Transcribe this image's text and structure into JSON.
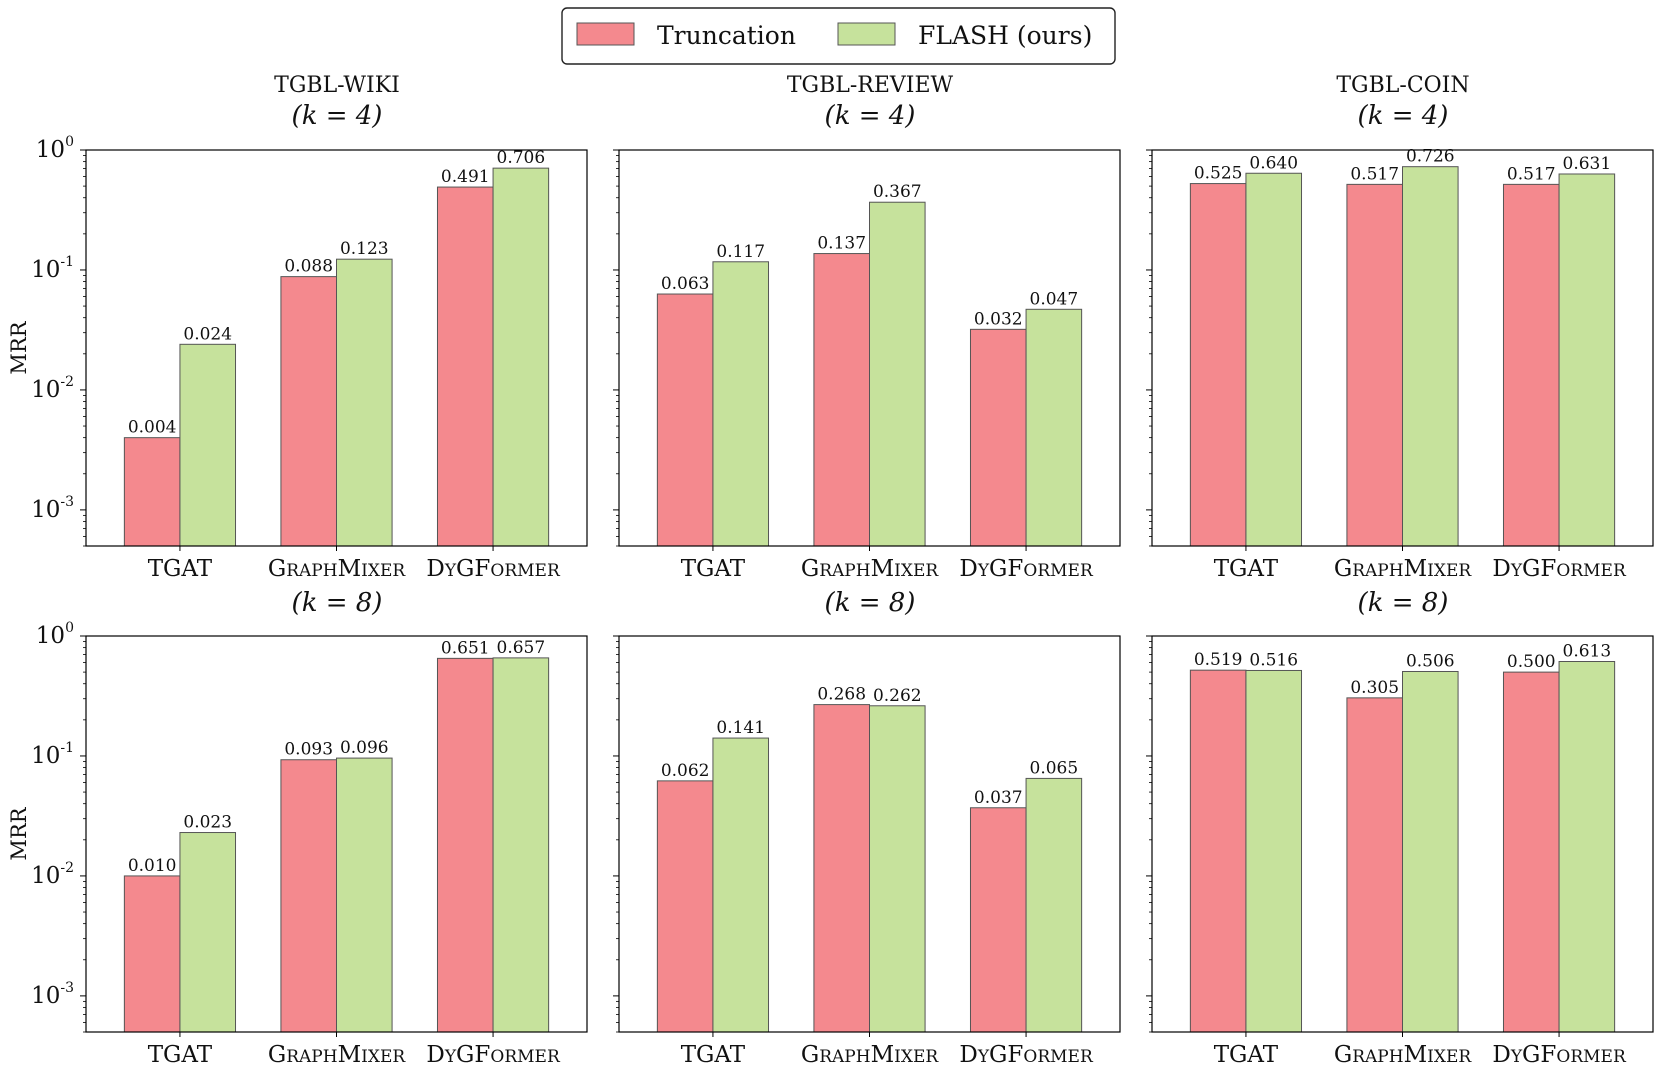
{
  "colors": {
    "truncation": "#f4898e",
    "flash": "#c6e29c",
    "bar_edge": "#555555",
    "frame": "#000000"
  },
  "legend": {
    "placement": "top-center",
    "items": [
      {
        "label": "Truncation",
        "series": "truncation"
      },
      {
        "label": "FLASH (ours)",
        "series": "flash"
      }
    ]
  },
  "columns": [
    {
      "title": "TGBL-WIKI"
    },
    {
      "title": "TGBL-REVIEW"
    },
    {
      "title": "TGBL-COIN"
    }
  ],
  "rows": [
    {
      "label": "(k = 4)"
    },
    {
      "label": "(k = 8)"
    }
  ],
  "chart_data": [
    {
      "type": "bar",
      "dataset": "TGBL-WIKI",
      "k": 4,
      "categories": [
        "TGAT",
        "GRAPHMIXER",
        "DYGFORMER"
      ],
      "series": [
        {
          "name": "Truncation",
          "values": [
            0.004,
            0.088,
            0.491
          ]
        },
        {
          "name": "FLASH (ours)",
          "values": [
            0.024,
            0.123,
            0.706
          ]
        }
      ],
      "ylabel": "MRR",
      "yscale": "log",
      "ylim": [
        0.0005,
        1.0
      ],
      "yticks": [
        "10^0",
        "10^-1",
        "10^-2",
        "10^-3"
      ],
      "value_labels": [
        [
          "0.004",
          "0.088",
          "0.491"
        ],
        [
          "0.024",
          "0.123",
          "0.706"
        ]
      ]
    },
    {
      "type": "bar",
      "dataset": "TGBL-REVIEW",
      "k": 4,
      "categories": [
        "TGAT",
        "GRAPHMIXER",
        "DYGFORMER"
      ],
      "series": [
        {
          "name": "Truncation",
          "values": [
            0.063,
            0.137,
            0.032
          ]
        },
        {
          "name": "FLASH (ours)",
          "values": [
            0.117,
            0.367,
            0.047
          ]
        }
      ],
      "ylabel": "",
      "yscale": "log",
      "ylim": [
        0.0005,
        1.0
      ],
      "value_labels": [
        [
          "0.063",
          "0.137",
          "0.032"
        ],
        [
          "0.117",
          "0.367",
          "0.047"
        ]
      ]
    },
    {
      "type": "bar",
      "dataset": "TGBL-COIN",
      "k": 4,
      "categories": [
        "TGAT",
        "GRAPHMIXER",
        "DYGFORMER"
      ],
      "series": [
        {
          "name": "Truncation",
          "values": [
            0.525,
            0.517,
            0.517
          ]
        },
        {
          "name": "FLASH (ours)",
          "values": [
            0.64,
            0.726,
            0.631
          ]
        }
      ],
      "ylabel": "",
      "yscale": "log",
      "ylim": [
        0.0005,
        1.0
      ],
      "value_labels": [
        [
          "0.525",
          "0.517",
          "0.517"
        ],
        [
          "0.640",
          "0.726",
          "0.631"
        ]
      ]
    },
    {
      "type": "bar",
      "dataset": "TGBL-WIKI",
      "k": 8,
      "categories": [
        "TGAT",
        "GRAPHMIXER",
        "DYGFORMER"
      ],
      "series": [
        {
          "name": "Truncation",
          "values": [
            0.01,
            0.093,
            0.651
          ]
        },
        {
          "name": "FLASH (ours)",
          "values": [
            0.023,
            0.096,
            0.657
          ]
        }
      ],
      "ylabel": "MRR",
      "yscale": "log",
      "ylim": [
        0.0005,
        1.0
      ],
      "yticks": [
        "10^0",
        "10^-1",
        "10^-2",
        "10^-3"
      ],
      "value_labels": [
        [
          "0.010",
          "0.093",
          "0.651"
        ],
        [
          "0.023",
          "0.096",
          "0.657"
        ]
      ]
    },
    {
      "type": "bar",
      "dataset": "TGBL-REVIEW",
      "k": 8,
      "categories": [
        "TGAT",
        "GRAPHMIXER",
        "DYGFORMER"
      ],
      "series": [
        {
          "name": "Truncation",
          "values": [
            0.062,
            0.268,
            0.037
          ]
        },
        {
          "name": "FLASH (ours)",
          "values": [
            0.141,
            0.262,
            0.065
          ]
        }
      ],
      "ylabel": "",
      "yscale": "log",
      "ylim": [
        0.0005,
        1.0
      ],
      "value_labels": [
        [
          "0.062",
          "0.268",
          "0.037"
        ],
        [
          "0.141",
          "0.262",
          "0.065"
        ]
      ]
    },
    {
      "type": "bar",
      "dataset": "TGBL-COIN",
      "k": 8,
      "categories": [
        "TGAT",
        "GRAPHMIXER",
        "DYGFORMER"
      ],
      "series": [
        {
          "name": "Truncation",
          "values": [
            0.519,
            0.305,
            0.5
          ]
        },
        {
          "name": "FLASH (ours)",
          "values": [
            0.516,
            0.506,
            0.613
          ]
        }
      ],
      "ylabel": "",
      "yscale": "log",
      "ylim": [
        0.0005,
        1.0
      ],
      "value_labels": [
        [
          "0.519",
          "0.305",
          "0.500"
        ],
        [
          "0.516",
          "0.506",
          "0.613"
        ]
      ]
    }
  ]
}
